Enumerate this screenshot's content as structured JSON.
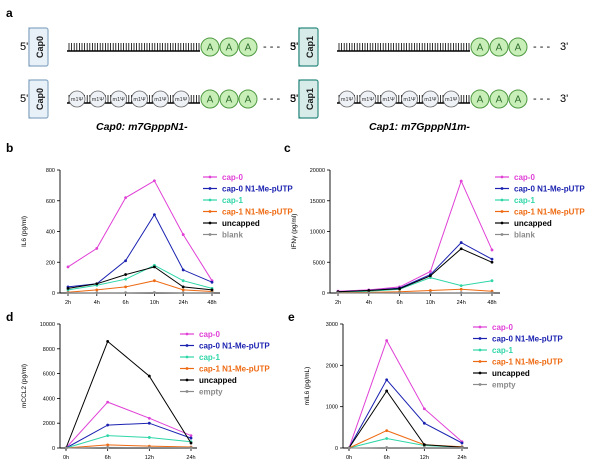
{
  "panel_a": {
    "letter": "a",
    "five_prime": "5'",
    "three_prime": "3'",
    "tail_dashes": "- - -",
    "poly_a": [
      "A",
      "A",
      "A"
    ],
    "mod_label": "m1Ψ",
    "left": {
      "cap": "Cap0",
      "title": "Cap0: m7GpppN1-",
      "color": "#e9f1f8",
      "stroke": "#8aa9c4"
    },
    "right": {
      "cap": "Cap1",
      "title": "Cap1: m7GpppN1m-",
      "color": "#d7ece9",
      "stroke": "#2e8a80"
    }
  },
  "colors": {
    "cap0": "#e040d6",
    "cap0_n1": "#1b22b0",
    "cap1": "#2fd6a8",
    "cap1_n1": "#ee6a12",
    "uncapped": "#000000",
    "grey": "#8a8a8a"
  },
  "chart_data": [
    {
      "letter": "b",
      "type": "line",
      "ylabel": "IL6  (pg/ml)",
      "categories": [
        "2h",
        "4h",
        "6h",
        "10h",
        "24h",
        "48h"
      ],
      "ylim": [
        0,
        800
      ],
      "yticks": [
        "0",
        "200",
        "400",
        "600",
        "800"
      ],
      "series": [
        {
          "name": "cap-0",
          "color": "#e040d6",
          "values": [
            170,
            290,
            620,
            730,
            380,
            80
          ]
        },
        {
          "name": "cap-0 N1-Me-pUTP",
          "color": "#1b22b0",
          "values": [
            40,
            60,
            210,
            510,
            150,
            70
          ]
        },
        {
          "name": "cap-1",
          "color": "#2fd6a8",
          "values": [
            20,
            50,
            90,
            180,
            80,
            30
          ]
        },
        {
          "name": "cap-1 N1-Me-pUTP",
          "color": "#ee6a12",
          "values": [
            5,
            20,
            40,
            80,
            20,
            10
          ]
        },
        {
          "name": "uncapped",
          "color": "#000000",
          "values": [
            30,
            60,
            120,
            170,
            40,
            20
          ]
        },
        {
          "name": "blank",
          "color": "#8a8a8a",
          "values": [
            2,
            2,
            2,
            3,
            2,
            2
          ]
        }
      ]
    },
    {
      "letter": "c",
      "type": "line",
      "ylabel": "IFNγ  (pg/ml)",
      "categories": [
        "2h",
        "4h",
        "6h",
        "10h",
        "24h",
        "48h"
      ],
      "ylim": [
        0,
        20000
      ],
      "yticks": [
        "0",
        "5000",
        "10000",
        "15000",
        "20000"
      ],
      "series": [
        {
          "name": "cap-0",
          "color": "#e040d6",
          "values": [
            300,
            500,
            1000,
            3500,
            18200,
            7000
          ]
        },
        {
          "name": "cap-0 N1-Me-pUTP",
          "color": "#1b22b0",
          "values": [
            200,
            400,
            800,
            3000,
            8200,
            5500
          ]
        },
        {
          "name": "cap-1",
          "color": "#2fd6a8",
          "values": [
            100,
            300,
            600,
            2500,
            1200,
            2000
          ]
        },
        {
          "name": "cap-1 N1-Me-pUTP",
          "color": "#ee6a12",
          "values": [
            50,
            100,
            200,
            400,
            600,
            300
          ]
        },
        {
          "name": "uncapped",
          "color": "#000000",
          "values": [
            200,
            400,
            700,
            2800,
            7200,
            5000
          ]
        },
        {
          "name": "blank",
          "color": "#8a8a8a",
          "values": [
            20,
            20,
            30,
            40,
            50,
            30
          ]
        }
      ]
    },
    {
      "letter": "d",
      "type": "line",
      "ylabel": "mCCL2 (pg/ml)",
      "categories": [
        "0h",
        "6h",
        "12h",
        "24h"
      ],
      "ylim": [
        0,
        10000
      ],
      "yticks": [
        "0",
        "2000",
        "4000",
        "6000",
        "8000",
        "10000"
      ],
      "series": [
        {
          "name": "cap-0",
          "color": "#e040d6",
          "values": [
            0,
            3700,
            2400,
            1000
          ]
        },
        {
          "name": "cap-0 N1-Me-pUTP",
          "color": "#1b22b0",
          "values": [
            0,
            1850,
            2000,
            800
          ]
        },
        {
          "name": "cap-1",
          "color": "#2fd6a8",
          "values": [
            0,
            1000,
            850,
            500
          ]
        },
        {
          "name": "cap-1 N1-Me-pUTP",
          "color": "#ee6a12",
          "values": [
            0,
            250,
            150,
            80
          ]
        },
        {
          "name": "uncapped",
          "color": "#000000",
          "values": [
            0,
            8600,
            5800,
            400
          ]
        },
        {
          "name": "empty",
          "color": "#8a8a8a",
          "values": [
            0,
            50,
            40,
            30
          ]
        }
      ]
    },
    {
      "letter": "e",
      "type": "line",
      "ylabel": "mIL6 (pg/mL)",
      "categories": [
        "0h",
        "6h",
        "12h",
        "24h"
      ],
      "ylim": [
        0,
        3000
      ],
      "yticks": [
        "0",
        "1000",
        "2000",
        "3000"
      ],
      "series": [
        {
          "name": "cap-0",
          "color": "#e040d6",
          "values": [
            0,
            2600,
            950,
            150
          ]
        },
        {
          "name": "cap-0 N1-Me-pUTP",
          "color": "#1b22b0",
          "values": [
            0,
            1650,
            600,
            120
          ]
        },
        {
          "name": "cap-1",
          "color": "#2fd6a8",
          "values": [
            0,
            230,
            60,
            20
          ]
        },
        {
          "name": "cap-1 N1-Me-pUTP",
          "color": "#ee6a12",
          "values": [
            0,
            420,
            80,
            30
          ]
        },
        {
          "name": "uncapped",
          "color": "#000000",
          "values": [
            0,
            1380,
            80,
            20
          ]
        },
        {
          "name": "empty",
          "color": "#8a8a8a",
          "values": [
            0,
            10,
            10,
            10
          ]
        }
      ]
    }
  ]
}
